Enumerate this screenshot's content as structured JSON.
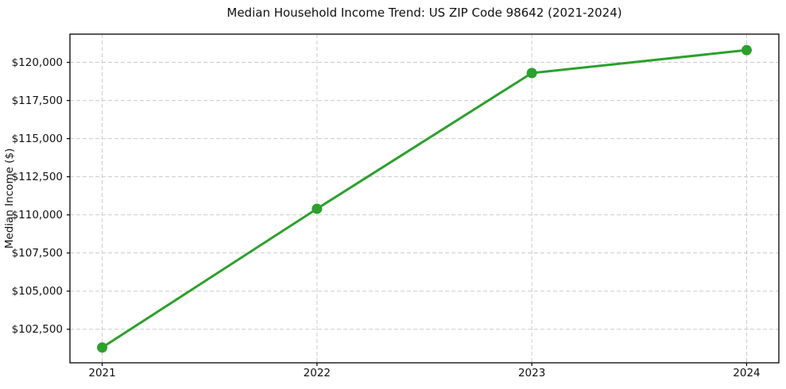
{
  "page": {
    "background": "#ffffff"
  },
  "chart_data": {
    "type": "line",
    "title": "Median Household Income Trend: US ZIP Code 98642 (2021-2024)",
    "xlabel": "",
    "ylabel": "Median Income ($)",
    "x": [
      2021,
      2022,
      2023,
      2024
    ],
    "x_tick_labels": [
      "2021",
      "2022",
      "2023",
      "2024"
    ],
    "series": [
      {
        "values": [
          101300,
          110400,
          119300,
          120800
        ],
        "color": "#2ca02c",
        "marker": "circle",
        "line_width": 3,
        "marker_radius": 6.5
      }
    ],
    "y_ticks": [
      102500,
      105000,
      107500,
      110000,
      112500,
      115000,
      117500,
      120000
    ],
    "y_tick_labels": [
      "$102,500",
      "$105,000",
      "$107,500",
      "$110,000",
      "$112,500",
      "$115,000",
      "$117,500",
      "$120,000"
    ],
    "ylim": [
      100300,
      121850
    ],
    "xlim": [
      2020.85,
      2024.15
    ],
    "grid": "on",
    "grid_style": "dashed",
    "grid_color": "#cccccc",
    "spine_color": "#000000",
    "tick_color": "#000000",
    "legend": "none"
  }
}
